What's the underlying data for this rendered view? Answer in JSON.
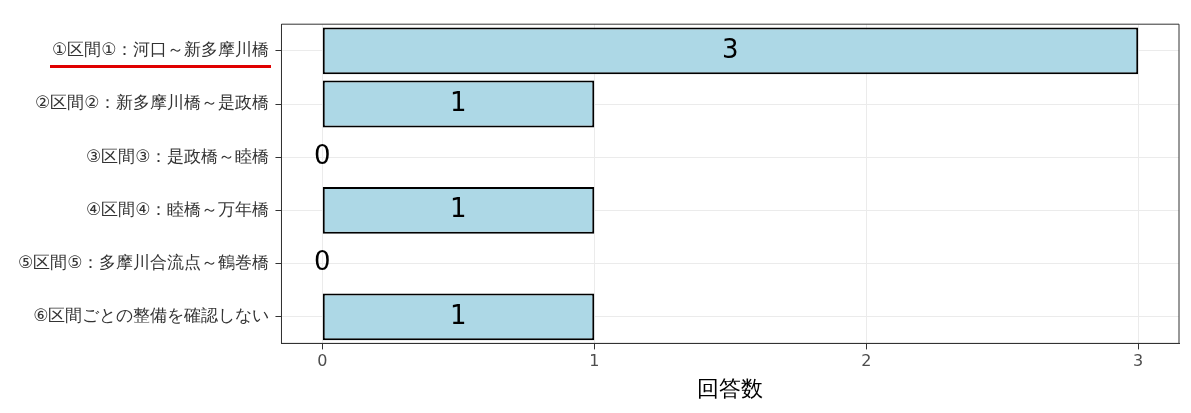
{
  "chart_data": {
    "type": "bar",
    "orientation": "horizontal",
    "xlabel": "回答数",
    "categories": [
      "①区間①：河口～新多摩川橋",
      "②区間②：新多摩川橋～是政橋",
      "③区間③：是政橋～睦橋",
      "④区間④：睦橋～万年橋",
      "⑤区間⑤：多摩川合流点～鶴巻橋",
      "⑥区間ごとの整備を確認しない"
    ],
    "values": [
      3,
      1,
      0,
      1,
      0,
      1
    ],
    "color": "#add8e6",
    "xlim": [
      -0.15,
      3.15
    ],
    "xticks": [
      0,
      1,
      2,
      3
    ],
    "grid": true,
    "data_labels": true,
    "legend": false
  }
}
